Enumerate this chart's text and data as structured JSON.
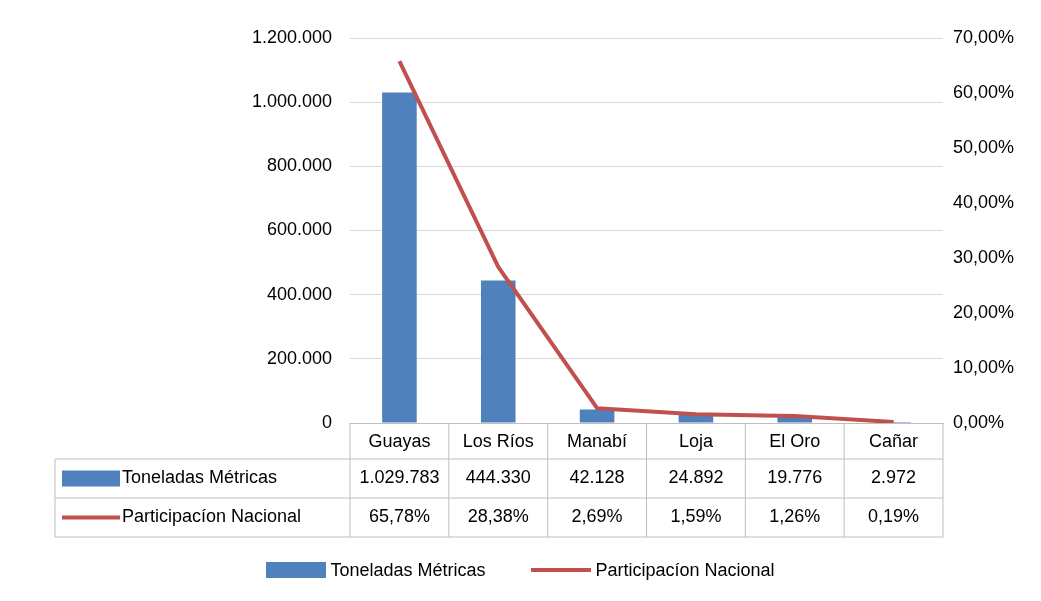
{
  "chart_data": {
    "type": "bar",
    "categories": [
      "Guayas",
      "Los Ríos",
      "Manabí",
      "Loja",
      "El Oro",
      "Cañar"
    ],
    "series": [
      {
        "name": "Toneladas Métricas",
        "type": "bar",
        "color": "#4f81bd",
        "values": [
          1029783,
          444330,
          42128,
          24892,
          19776,
          2972
        ],
        "value_labels": [
          "1.029.783",
          "444.330",
          "42.128",
          "24.892",
          "19.776",
          "2.972"
        ]
      },
      {
        "name": "Participacíon Nacional",
        "type": "line",
        "axis": "y2",
        "color": "#c0504d",
        "values": [
          65.78,
          28.38,
          2.69,
          1.59,
          1.26,
          0.19
        ],
        "value_labels": [
          "65,78%",
          "28,38%",
          "2,69%",
          "1,59%",
          "1,26%",
          "0,19%"
        ]
      }
    ],
    "ylim": [
      0,
      1200000
    ],
    "yticks": [
      0,
      {
        "value": 200000,
        "label": "200.000"
      },
      {
        "value": 400000,
        "label": "400.000"
      },
      {
        "value": 600000,
        "label": "600.000"
      },
      {
        "value": 800000,
        "label": "800.000"
      },
      {
        "value": 1000000,
        "label": "1.000.000"
      },
      {
        "value": 1200000,
        "label": "1.200.000"
      }
    ],
    "y2lim": [
      0,
      70
    ],
    "y2ticks": [
      {
        "value": 0,
        "label": "0,00%"
      },
      {
        "value": 10,
        "label": "10,00%"
      },
      {
        "value": 20,
        "label": "20,00%"
      },
      {
        "value": 30,
        "label": "30,00%"
      },
      {
        "value": 40,
        "label": "40,00%"
      },
      {
        "value": 50,
        "label": "50,00%"
      },
      {
        "value": 60,
        "label": "60,00%"
      },
      {
        "value": 70,
        "label": "70,00%"
      }
    ],
    "grid": "y",
    "legend": "bottom",
    "marker": "none"
  }
}
